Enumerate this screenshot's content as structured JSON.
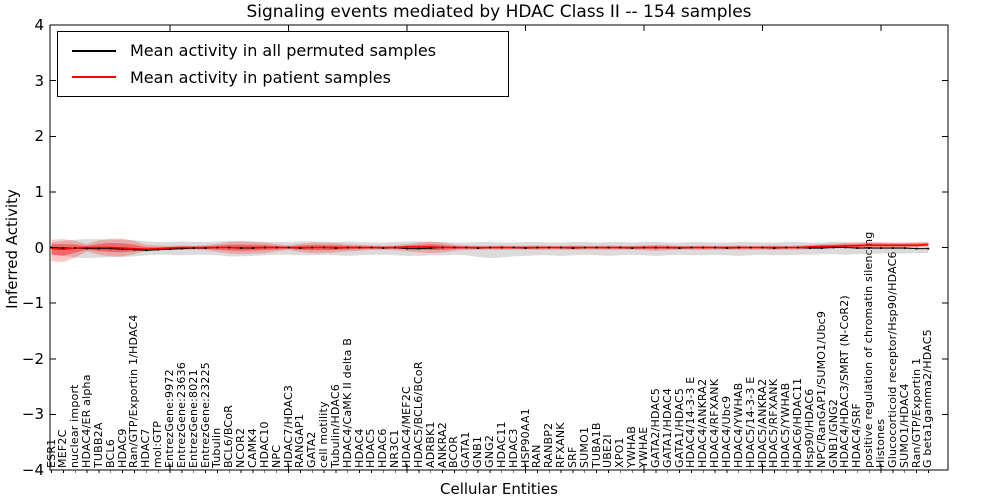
{
  "figure": {
    "title": "Signaling events mediated by HDAC Class II -- 154 samples",
    "xlabel": "Cellular Entities",
    "ylabel": "Inferred Activity"
  },
  "legend": {
    "position": "upper left",
    "items": [
      {
        "label": "Mean activity in all permuted samples",
        "color": "#000000"
      },
      {
        "label": "Mean activity in patient samples",
        "color": "#ff0000"
      }
    ]
  },
  "colors": {
    "background": "#ffffff",
    "spine": "#000000",
    "permuted_line": "#000000",
    "patient_line": "#ff0000",
    "permuted_band": "#999999",
    "patient_band": "#ff0000"
  },
  "chart_data": {
    "type": "line",
    "title": "Signaling events mediated by HDAC Class II -- 154 samples",
    "xlabel": "Cellular Entities",
    "ylabel": "Inferred Activity",
    "ylim": [
      -4,
      4
    ],
    "yticks": [
      4,
      3,
      2,
      1,
      0,
      -1,
      -2,
      -3,
      -4
    ],
    "grid": false,
    "legend_position": "upper left",
    "x_major_tick_every": 10,
    "categories": [
      "ESR1",
      "MEF2C",
      "nuclear import",
      "HDAC4/ER alpha",
      "TUBB2A",
      "BCL6",
      "HDAC9",
      "Ran/GTP/Exportin 1/HDAC4",
      "HDAC7",
      "mol:GTP",
      "EntrezGene:9972",
      "EntrezGene:23636",
      "EntrezGene:8021",
      "EntrezGene:23225",
      "Tubulin",
      "BCL6/BCoR",
      "NCOR2",
      "CAMK4",
      "HDAC10",
      "NPC",
      "HDAC7/HDAC3",
      "RANGAP1",
      "GATA2",
      "cell motility",
      "Tubulin/HDAC6",
      "HDAC4/CaMK II delta B",
      "HDAC4",
      "HDAC5",
      "HDAC6",
      "NR3C1",
      "HDAC4/MEF2C",
      "HDAC5/BCL6/BCoR",
      "ADRBK1",
      "ANKRA2",
      "BCOR",
      "GATA1",
      "GNB1",
      "GNG2",
      "HDAC11",
      "HDAC3",
      "HSP90AA1",
      "RAN",
      "RANBP2",
      "RFXANK",
      "SRF",
      "SUMO1",
      "TUBA1B",
      "UBE2I",
      "XPO1",
      "YWHAB",
      "YWHAE",
      "GATA2/HDAC5",
      "GATA1/HDAC4",
      "GATA1/HDAC5",
      "HDAC4/14-3-3 E",
      "HDAC4/ANKRA2",
      "HDAC4/RFXANK",
      "HDAC4/Ubc9",
      "HDAC4/YWHAB",
      "HDAC5/14-3-3 E",
      "HDAC5/ANKRA2",
      "HDAC5/RFXANK",
      "HDAC5/YWHAB",
      "HDAC6/HDAC11",
      "Hsp90/HDAC6",
      "NPC/RanGAP1/SUMO1/Ubc9",
      "GNB1/GNG2",
      "HDAC4/HDAC3/SMRT (N-CoR2)",
      "HDAC4/SRF",
      "positive regulation of chromatin silencing",
      "Histones",
      "Glucocorticoid receptor/Hsp90/HDAC6",
      "SUMO1/HDAC4",
      "Ran/GTP/Exportin 1",
      "G beta1gamma2/HDAC5"
    ],
    "series": [
      {
        "name": "Mean activity in all permuted samples",
        "color": "#000000",
        "style": "solid_with_dot_markers",
        "values": [
          0,
          -0.01,
          -0.01,
          -0.02,
          -0.02,
          -0.02,
          -0.03,
          -0.04,
          -0.05,
          -0.04,
          -0.03,
          -0.02,
          -0.01,
          -0.01,
          0,
          0,
          -0.01,
          -0.01,
          0,
          0,
          0,
          -0.01,
          0,
          0,
          -0.01,
          0,
          0,
          0,
          -0.01,
          0,
          -0.02,
          -0.02,
          -0.01,
          0,
          0,
          0,
          -0.01,
          0,
          0,
          0,
          -0.01,
          0,
          0,
          0,
          -0.01,
          0,
          0,
          0,
          0,
          -0.01,
          0,
          0,
          0,
          -0.01,
          0,
          0,
          0,
          -0.01,
          0,
          0,
          0,
          -0.01,
          0,
          0,
          -0.01,
          -0.01,
          0,
          0,
          -0.01,
          -0.01,
          -0.01,
          -0.01,
          -0.01,
          -0.02,
          -0.02
        ]
      },
      {
        "name": "Mean activity in patient samples",
        "color": "#ff0000",
        "style": "solid",
        "values": [
          -0.02,
          -0.03,
          -0.01,
          0,
          0,
          0,
          -0.01,
          -0.02,
          -0.03,
          -0.02,
          -0.01,
          0,
          0,
          0,
          0,
          0,
          0,
          0,
          0,
          0,
          0,
          0,
          0,
          0,
          0,
          0,
          0,
          0,
          0,
          0,
          0.01,
          0.01,
          0.01,
          0,
          0,
          0,
          0,
          0,
          0,
          0,
          0,
          0,
          0,
          0,
          0,
          0,
          0,
          0,
          0,
          0,
          0,
          0,
          0,
          0,
          0,
          0,
          0,
          0,
          0,
          0,
          0,
          0,
          0,
          0,
          0.01,
          0.02,
          0.02,
          0.03,
          0.03,
          0.04,
          0.04,
          0.04,
          0.04,
          0.04,
          0.05
        ]
      }
    ],
    "bands": [
      {
        "name": "permuted-sample-range",
        "color": "#999999",
        "opacity": 0.35,
        "upper": [
          0.09,
          0.12,
          0.14,
          0.15,
          0.15,
          0.14,
          0.14,
          0.13,
          0.11,
          0.1,
          0.1,
          0.11,
          0.1,
          0.1,
          0.11,
          0.12,
          0.12,
          0.11,
          0.1,
          0.1,
          0.1,
          0.11,
          0.11,
          0.1,
          0.1,
          0.11,
          0.1,
          0.09,
          0.09,
          0.1,
          0.11,
          0.11,
          0.1,
          0.1,
          0.09,
          0.09,
          0.1,
          0.1,
          0.09,
          0.09,
          0.1,
          0.1,
          0.09,
          0.09,
          0.1,
          0.1,
          0.09,
          0.1,
          0.1,
          0.09,
          0.1,
          0.1,
          0.09,
          0.09,
          0.1,
          0.1,
          0.09,
          0.09,
          0.1,
          0.1,
          0.09,
          0.09,
          0.1,
          0.1,
          0.09,
          0.09,
          0.1,
          0.1,
          0.09,
          0.09,
          0.08,
          0.08,
          0.08,
          0.08,
          0.08
        ],
        "lower": [
          -0.12,
          -0.15,
          -0.18,
          -0.19,
          -0.18,
          -0.17,
          -0.17,
          -0.16,
          -0.14,
          -0.13,
          -0.13,
          -0.14,
          -0.13,
          -0.13,
          -0.14,
          -0.16,
          -0.16,
          -0.15,
          -0.14,
          -0.13,
          -0.13,
          -0.14,
          -0.14,
          -0.13,
          -0.14,
          -0.15,
          -0.14,
          -0.13,
          -0.13,
          -0.14,
          -0.15,
          -0.15,
          -0.14,
          -0.14,
          -0.13,
          -0.14,
          -0.17,
          -0.19,
          -0.18,
          -0.16,
          -0.15,
          -0.14,
          -0.14,
          -0.15,
          -0.14,
          -0.13,
          -0.14,
          -0.15,
          -0.14,
          -0.13,
          -0.14,
          -0.15,
          -0.14,
          -0.13,
          -0.14,
          -0.14,
          -0.13,
          -0.14,
          -0.15,
          -0.14,
          -0.13,
          -0.14,
          -0.14,
          -0.13,
          -0.13,
          -0.12,
          -0.12,
          -0.13,
          -0.12,
          -0.12,
          -0.11,
          -0.11,
          -0.11,
          -0.1,
          -0.1
        ]
      },
      {
        "name": "patient-sample-range-outer",
        "color": "#ff0000",
        "opacity": 0.22,
        "upper": [
          0.14,
          0.15,
          0.12,
          0.06,
          0.13,
          0.16,
          0.16,
          0.12,
          0.05,
          0.035,
          0.03,
          0.035,
          0.03,
          0.04,
          0.07,
          0.1,
          0.11,
          0.1,
          0.09,
          0.06,
          0.035,
          0.07,
          0.09,
          0.09,
          0.08,
          0.06,
          0.05,
          0.035,
          0.03,
          0.04,
          0.06,
          0.09,
          0.11,
          0.09,
          0.05,
          0.035,
          0.03,
          0.03,
          0.035,
          0.03,
          0.03,
          0.035,
          0.03,
          0.03,
          0.035,
          0.03,
          0.03,
          0.035,
          0.03,
          0.03,
          0.04,
          0.05,
          0.04,
          0.03,
          0.03,
          0.035,
          0.03,
          0.03,
          0.035,
          0.03,
          0.03,
          0.035,
          0.03,
          0.035,
          0.05,
          0.06,
          0.07,
          0.08,
          0.09,
          0.1,
          0.1,
          0.09,
          0.09,
          0.1,
          0.11
        ],
        "lower": [
          -0.25,
          -0.26,
          -0.18,
          -0.07,
          -0.13,
          -0.16,
          -0.16,
          -0.12,
          -0.06,
          -0.045,
          -0.04,
          -0.045,
          -0.04,
          -0.05,
          -0.08,
          -0.11,
          -0.12,
          -0.11,
          -0.1,
          -0.07,
          -0.045,
          -0.08,
          -0.1,
          -0.1,
          -0.09,
          -0.07,
          -0.06,
          -0.045,
          -0.04,
          -0.05,
          -0.07,
          -0.09,
          -0.1,
          -0.09,
          -0.06,
          -0.045,
          -0.04,
          -0.04,
          -0.045,
          -0.04,
          -0.04,
          -0.045,
          -0.04,
          -0.04,
          -0.045,
          -0.04,
          -0.04,
          -0.045,
          -0.04,
          -0.04,
          -0.05,
          -0.06,
          -0.05,
          -0.04,
          -0.04,
          -0.045,
          -0.04,
          -0.04,
          -0.045,
          -0.04,
          -0.04,
          -0.045,
          -0.04,
          -0.04,
          -0.03,
          -0.02,
          -0.015,
          -0.01,
          0,
          0,
          0.005,
          0,
          0,
          0.01,
          0.02
        ]
      },
      {
        "name": "patient-sample-range-inner",
        "color": "#ff0000",
        "opacity": 0.38,
        "derived_from": "patient-sample-range-outer",
        "shrink_ratio": 0.5
      }
    ]
  }
}
